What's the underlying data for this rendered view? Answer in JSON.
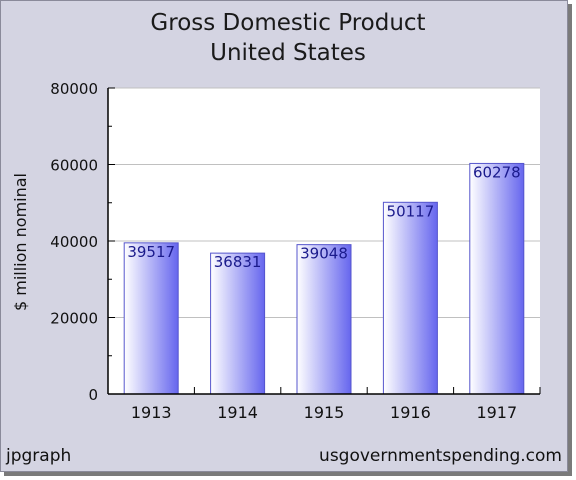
{
  "chart_data": {
    "type": "bar",
    "title": "Gross Domestic Product",
    "subtitle": "United States",
    "xlabel": "",
    "ylabel": "$ million nominal",
    "categories": [
      "1913",
      "1914",
      "1915",
      "1916",
      "1917"
    ],
    "values": [
      39517,
      36831,
      39048,
      50117,
      60278
    ],
    "data_labels": [
      "39517",
      "36831",
      "39048",
      "50117",
      "60278"
    ],
    "ylim": [
      0,
      80000
    ],
    "yticks": [
      0,
      20000,
      40000,
      60000,
      80000
    ],
    "ytick_labels": [
      "0",
      "20000",
      "40000",
      "60000",
      "80000"
    ],
    "grid": true,
    "colors": {
      "background": "#d4d4e2",
      "plot": "#ffffff",
      "bar_light": "#ffffff",
      "bar_dark": "#6666ee",
      "label": "#1a1a8c",
      "grid": "#c0c0c0"
    }
  },
  "footer": {
    "left": "jpgraph",
    "right": "usgovernmentspending.com"
  }
}
